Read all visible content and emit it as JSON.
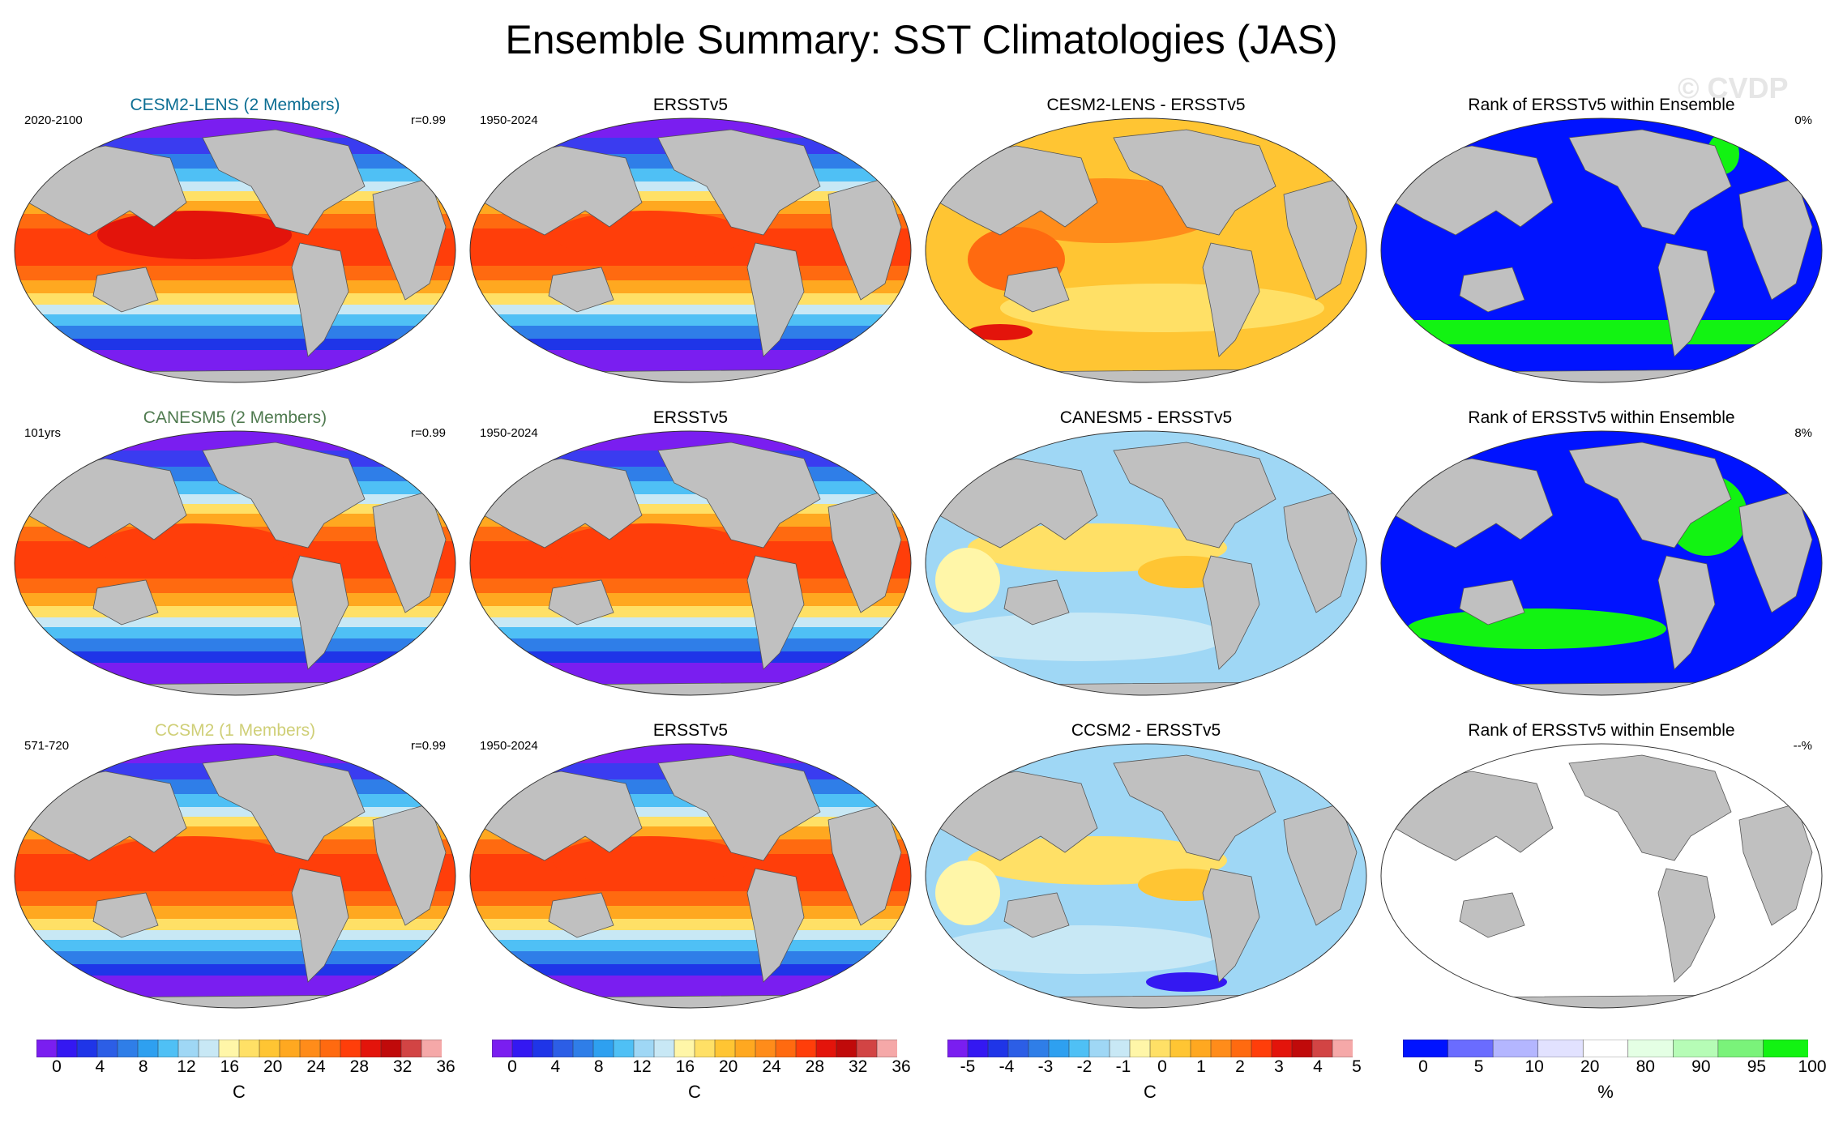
{
  "title": "Ensemble Summary: SST Climatologies (JAS)",
  "watermark": "© CVDP",
  "colors": {
    "land": "#c0c0c0",
    "model_title_1": "#0d6f94",
    "model_title_2": "#4f7a4f",
    "model_title_3": "#cfcf77",
    "rank_low": "#0013ff",
    "rank_high": "#12f312"
  },
  "rows": [
    {
      "model": {
        "title": "CESM2-LENS (2 Members)",
        "left": "2020-2100",
        "right": "r=0.99"
      },
      "obs": {
        "title": "ERSSTv5",
        "left": "1950-2024"
      },
      "diff": {
        "title": "CESM2-LENS - ERSSTv5"
      },
      "rank": {
        "title": "Rank of ERSSTv5 within Ensemble",
        "right": "0%"
      }
    },
    {
      "model": {
        "title": "CANESM5 (2 Members)",
        "left": "101yrs",
        "right": "r=0.99"
      },
      "obs": {
        "title": "ERSSTv5",
        "left": "1950-2024"
      },
      "diff": {
        "title": "CANESM5 - ERSSTv5"
      },
      "rank": {
        "title": "Rank of ERSSTv5 within Ensemble",
        "right": "8%"
      }
    },
    {
      "model": {
        "title": "CCSM2 (1 Members)",
        "left": "571-720",
        "right": "r=0.99"
      },
      "obs": {
        "title": "ERSSTv5",
        "left": "1950-2024"
      },
      "diff": {
        "title": "CCSM2 - ERSSTv5"
      },
      "rank": {
        "title": "Rank of ERSSTv5 within Ensemble",
        "right": "--%"
      }
    }
  ],
  "colorbars": [
    {
      "label": "C",
      "ticks": [
        "0",
        "4",
        "8",
        "12",
        "16",
        "20",
        "24",
        "28",
        "32",
        "36"
      ],
      "colors": [
        "#7a1ef0",
        "#3418f2",
        "#1f35e8",
        "#2c5ee6",
        "#2f7ee8",
        "#2ea0f0",
        "#4fc0f5",
        "#9fd7f5",
        "#c8e8f5",
        "#fff6a8",
        "#ffe066",
        "#ffc533",
        "#ffa820",
        "#ff8c1a",
        "#ff6a10",
        "#ff3e0a",
        "#e3140b",
        "#c00a0a",
        "#d24444",
        "#f5a8a8"
      ]
    },
    {
      "label": "C",
      "ticks": [
        "0",
        "4",
        "8",
        "12",
        "16",
        "20",
        "24",
        "28",
        "32",
        "36"
      ],
      "colors": [
        "#7a1ef0",
        "#3418f2",
        "#1f35e8",
        "#2c5ee6",
        "#2f7ee8",
        "#2ea0f0",
        "#4fc0f5",
        "#9fd7f5",
        "#c8e8f5",
        "#fff6a8",
        "#ffe066",
        "#ffc533",
        "#ffa820",
        "#ff8c1a",
        "#ff6a10",
        "#ff3e0a",
        "#e3140b",
        "#c00a0a",
        "#d24444",
        "#f5a8a8"
      ]
    },
    {
      "label": "C",
      "ticks": [
        "-5",
        "-4",
        "-3",
        "-2",
        "-1",
        "0",
        "1",
        "2",
        "3",
        "4",
        "5"
      ],
      "colors": [
        "#7a1ef0",
        "#3418f2",
        "#1f35e8",
        "#2c5ee6",
        "#2f7ee8",
        "#2ea0f0",
        "#4fc0f5",
        "#9fd7f5",
        "#c8e8f5",
        "#fff6a8",
        "#ffe066",
        "#ffc533",
        "#ffa820",
        "#ff8c1a",
        "#ff6a10",
        "#ff3e0a",
        "#e3140b",
        "#c00a0a",
        "#d24444",
        "#f5a8a8"
      ]
    },
    {
      "label": "%",
      "ticks": [
        "0",
        "5",
        "10",
        "20",
        "80",
        "90",
        "95",
        "100"
      ],
      "colors": [
        "#0013ff",
        "#6a6cff",
        "#b4b6ff",
        "#e2e2ff",
        "#ffffff",
        "#e4ffe4",
        "#b6fcb6",
        "#7af37a",
        "#12f312"
      ]
    }
  ]
}
